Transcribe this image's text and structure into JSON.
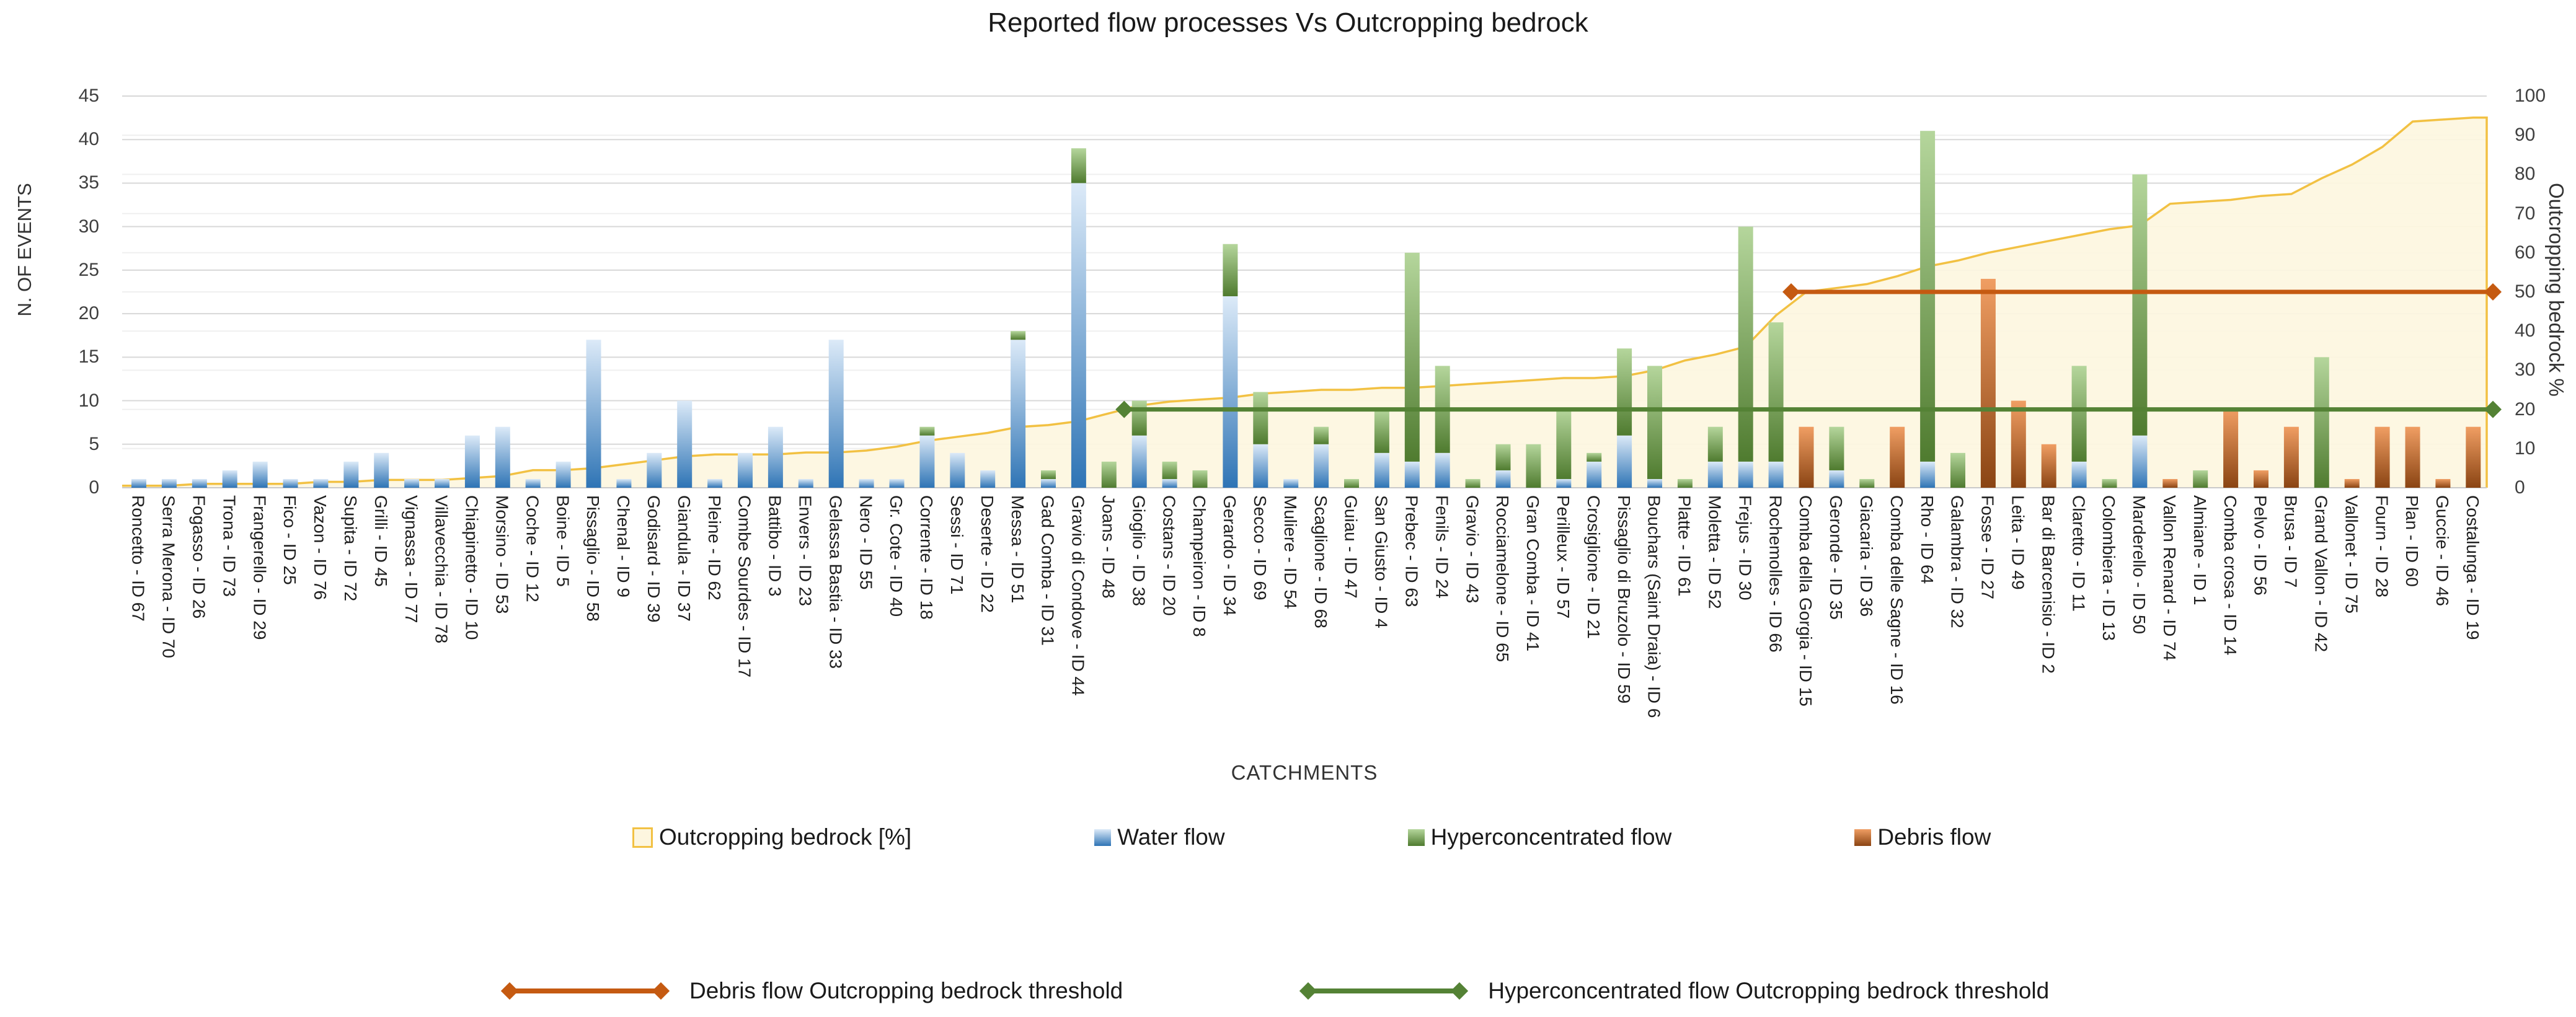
{
  "title": "Reported flow processes Vs Outcropping bedrock",
  "axes": {
    "left_title": "N. OF EVENTS",
    "right_title": "Outcropping bedrock %",
    "x_title": "CATCHMENTS",
    "left_ticks": [
      0,
      5,
      10,
      15,
      20,
      25,
      30,
      35,
      40,
      45
    ],
    "right_ticks": [
      0,
      10,
      20,
      30,
      40,
      50,
      60,
      70,
      80,
      90,
      100
    ]
  },
  "legend": {
    "items": [
      {
        "label": "Outcropping bedrock [%]",
        "series": "bedrock"
      },
      {
        "label": "Water flow",
        "series": "water"
      },
      {
        "label": "Hyperconcentrated flow",
        "series": "hyper"
      },
      {
        "label": "Debris flow",
        "series": "debris"
      }
    ]
  },
  "threshold_legend": [
    {
      "label": "Debris flow Outcropping bedrock threshold",
      "color": "#C55A11"
    },
    {
      "label": "Hyperconcentrated flow Outcropping bedrock threshold",
      "color": "#548235"
    }
  ],
  "colors": {
    "water_top": "#DCEAF8",
    "water_bottom": "#2E74B5",
    "hyper_top": "#B5D69C",
    "hyper_bottom": "#4F7B2F",
    "debris_top": "#F09E63",
    "debris_bottom": "#8A4413",
    "area_fill": "#FDF6DF",
    "area_stroke": "#F2C143",
    "grid_major": "#D8D8D8",
    "grid_minor": "#EFEFEF",
    "axis_line": "#C9C9C9"
  },
  "chart_data": {
    "type": "bar",
    "subtype": "stacked-bars-with-secondary-area",
    "title": "Reported flow processes Vs Outcropping bedrock",
    "xlabel": "CATCHMENTS",
    "ylabel_left": "N. OF EVENTS",
    "ylabel_right": "Outcropping bedrock %",
    "ylim_left": [
      0,
      45
    ],
    "ylim_right": [
      0,
      100
    ],
    "grid": true,
    "legend_position": "bottom",
    "categories": [
      "Roncetto - ID 67",
      "Serra Merona - ID 70",
      "Fogasso - ID 26",
      "Trona - ID 73",
      "Frangerello - ID 29",
      "Fico - ID 25",
      "Vazon - ID 76",
      "Supita - ID 72",
      "Grilli - ID 45",
      "Vignassa - ID 77",
      "Villavecchia - ID 78",
      "Chiapinetto - ID 10",
      "Morsino - ID 53",
      "Coche - ID 12",
      "Boine - ID 5",
      "Pissaglio - ID 58",
      "Chenal - ID 9",
      "Godisard - ID 39",
      "Giandula - ID 37",
      "Pleine - ID 62",
      "Combe Sourdes - ID 17",
      "Battibo - ID 3",
      "Envers - ID 23",
      "Gelassa Bastia - ID 33",
      "Nero - ID 55",
      "Gr. Cote - ID 40",
      "Corrente - ID 18",
      "Sessi - ID 71",
      "Deserte - ID 22",
      "Messa - ID 51",
      "Gad Comba - ID 31",
      "Gravio di Condove - ID 44",
      "Joans - ID 48",
      "Gioglio - ID 38",
      "Costans - ID 20",
      "Champeiron - ID 8",
      "Gerardo - ID 34",
      "Secco - ID 69",
      "Muliere - ID 54",
      "Scaglione - ID 68",
      "Guiau - ID 47",
      "San Giusto - ID 4",
      "Prebec - ID 63",
      "Fenils - ID 24",
      "Gravio - ID 43",
      "Rocciamelone - ID 65",
      "Gran Comba - ID 41",
      "Perilleux - ID 57",
      "Crosiglione - ID 21",
      "Pissaglio di Bruzolo - ID 59",
      "Bouchars (Saint Draia) - ID 6",
      "Platte - ID 61",
      "Moletta - ID 52",
      "Frejus - ID 30",
      "Rochemolles - ID 66",
      "Comba della Gorgia - ID 15",
      "Geronde - ID 35",
      "Giacaria - ID 36",
      "Comba delle Sagne - ID 16",
      "Rho - ID 64",
      "Galambra - ID 32",
      "Fosse - ID 27",
      "Leita - ID 49",
      "Bar di Barcenisio - ID 2",
      "Claretto - ID 11",
      "Colombiera - ID 13",
      "Marderello - ID 50",
      "Vallon Renard - ID 74",
      "Almiane - ID 1",
      "Comba crosa - ID 14",
      "Pelvo - ID 56",
      "Brusa - ID 7",
      "Grand Vallon - ID 42",
      "Vallonet - ID 75",
      "Fourn - ID 28",
      "Plan - ID 60",
      "Guccie - ID 46",
      "Costalunga - ID 19"
    ],
    "series": [
      {
        "name": "Water flow",
        "key": "water",
        "type": "bar",
        "axis": "left",
        "values": [
          1,
          1,
          1,
          2,
          3,
          1,
          1,
          3,
          4,
          1,
          1,
          6,
          7,
          1,
          3,
          17,
          1,
          4,
          10,
          1,
          4,
          7,
          1,
          17,
          1,
          1,
          6,
          4,
          2,
          17,
          1,
          35,
          0,
          6,
          1,
          0,
          22,
          5,
          1,
          5,
          0,
          4,
          3,
          4,
          0,
          2,
          0,
          1,
          3,
          6,
          1,
          0,
          3,
          3,
          3,
          0,
          2,
          0,
          0,
          3,
          0,
          0,
          0,
          0,
          3,
          0,
          6,
          0,
          0,
          0,
          0,
          0,
          0,
          0,
          0,
          0,
          0,
          0
        ]
      },
      {
        "name": "Hyperconcentrated flow",
        "key": "hyper",
        "type": "bar",
        "axis": "left",
        "values": [
          0,
          0,
          0,
          0,
          0,
          0,
          0,
          0,
          0,
          0,
          0,
          0,
          0,
          0,
          0,
          0,
          0,
          0,
          0,
          0,
          0,
          0,
          0,
          0,
          0,
          0,
          1,
          0,
          0,
          1,
          1,
          4,
          3,
          4,
          2,
          2,
          6,
          6,
          0,
          2,
          1,
          5,
          24,
          10,
          1,
          3,
          5,
          8,
          1,
          10,
          13,
          1,
          4,
          27,
          16,
          0,
          5,
          1,
          0,
          38,
          4,
          0,
          0,
          0,
          11,
          1,
          30,
          0,
          2,
          0,
          0,
          0,
          15,
          0,
          0,
          0,
          0,
          0
        ]
      },
      {
        "name": "Debris flow",
        "key": "debris",
        "type": "bar",
        "axis": "left",
        "values": [
          0,
          0,
          0,
          0,
          0,
          0,
          0,
          0,
          0,
          0,
          0,
          0,
          0,
          0,
          0,
          0,
          0,
          0,
          0,
          0,
          0,
          0,
          0,
          0,
          0,
          0,
          0,
          0,
          0,
          0,
          0,
          0,
          0,
          0,
          0,
          0,
          0,
          0,
          0,
          0,
          0,
          0,
          0,
          0,
          0,
          0,
          0,
          0,
          0,
          0,
          0,
          0,
          0,
          0,
          0,
          7,
          0,
          0,
          7,
          0,
          0,
          24,
          10,
          5,
          0,
          0,
          0,
          1,
          0,
          9,
          2,
          7,
          0,
          1,
          7,
          7,
          1,
          7
        ]
      },
      {
        "name": "Outcropping bedrock [%]",
        "key": "bedrock",
        "type": "area",
        "axis": "right",
        "values": [
          0.5,
          0.5,
          1,
          1,
          1,
          1,
          1.5,
          1.5,
          2,
          2,
          2,
          2.5,
          3,
          4.5,
          4.5,
          5,
          6,
          7,
          8,
          8.5,
          8.5,
          8.5,
          9,
          9,
          9.5,
          10.5,
          12,
          13,
          14,
          15.5,
          16,
          17,
          19,
          21,
          22,
          22.5,
          23,
          24,
          24.5,
          25,
          25,
          25.5,
          25.5,
          26,
          26.5,
          27,
          27.5,
          28,
          28,
          28.5,
          30,
          32.5,
          34,
          36,
          44,
          50,
          51,
          52,
          54,
          56.5,
          58,
          60,
          61.5,
          63,
          64.5,
          66,
          67,
          72.5,
          73,
          73.5,
          74.5,
          75,
          79,
          82.5,
          87,
          93.5,
          94,
          94.5
        ]
      }
    ],
    "thresholds": [
      {
        "name": "Hyperconcentrated flow Outcropping bedrock threshold",
        "value_pct": 20,
        "axis": "right",
        "starts_at_index": 33,
        "color": "#548235"
      },
      {
        "name": "Debris flow Outcropping bedrock threshold",
        "value_pct": 50,
        "axis": "right",
        "starts_at_index": 55,
        "color": "#C55A11"
      }
    ]
  }
}
